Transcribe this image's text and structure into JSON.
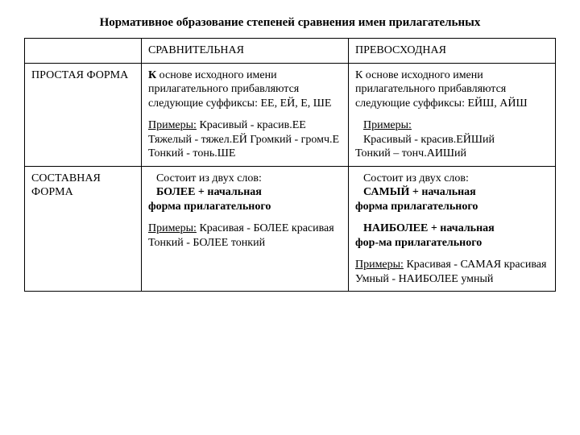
{
  "title": "Нормативное образование степеней сравнения имен прилагательных",
  "headers": {
    "blank": "",
    "comparative": "СРАВНИТЕЛЬНАЯ",
    "superlative": "ПРЕВОСХОДНАЯ"
  },
  "rows": {
    "simple": {
      "label": "ПРОСТАЯ ФОРМА",
      "comp": {
        "rule_pre": "К",
        "rule_mid": "основе исходного имени прилагательного прибавляются следующие суффиксы: ЕЕ, ЕЙ, Е, ШЕ",
        "ex_label": "Примеры:",
        "ex_body": " Красивый - красив.ЕЕ Тяжелый - тяжел.ЕЙ Громкий - громч.Е Тонкий - тонь.ШЕ"
      },
      "sup": {
        "rule": "К основе исходного имени прилагательного прибавляются следующие суффиксы: ЕЙШ, АЙШ",
        "ex_label": "Примеры:",
        "ex_body1": "Красивый - красив.ЕЙШий",
        "ex_body2": "Тонкий – тонч.АИШий"
      }
    },
    "compound": {
      "label": "СОСТАВНАЯ ФОРМА",
      "comp": {
        "p1a": "Состоит из двух слов:",
        "p1b": "БОЛЕЕ + начальная",
        "p1c": "форма прилагательного",
        "ex_label": "Примеры:",
        "ex_body": " Красивая - БОЛЕЕ красивая Тонкий - БОЛЕЕ тонкий"
      },
      "sup": {
        "p1a": "Состоит из двух слов:",
        "p1b": "САМЫЙ + начальная",
        "p1c": "форма прилагательного",
        "p2a": "НАИБОЛЕЕ + начальная",
        "p2b": "фор-ма прилагательного",
        "ex_label": "Примеры:",
        "ex_body": " Красивая - САМАЯ красивая Умный - НАИБОЛЕЕ умный"
      }
    }
  },
  "style": {
    "font_family": "Times New Roman",
    "font_size_pt": 11,
    "title_fontsize_pt": 12,
    "text_color": "#000000",
    "background_color": "#ffffff",
    "border_color": "#000000",
    "col_widths_pct": [
      22,
      39,
      39
    ]
  }
}
